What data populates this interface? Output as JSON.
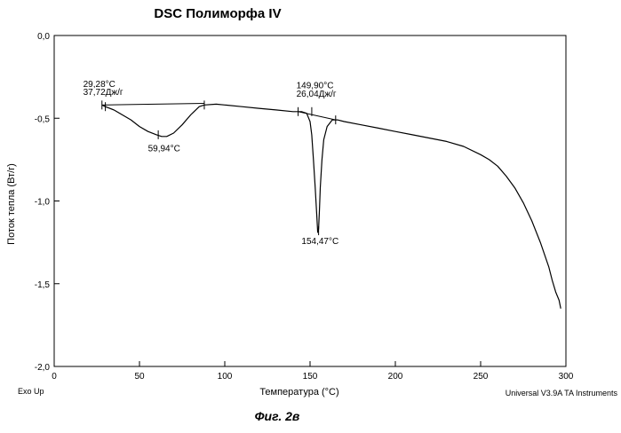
{
  "chart_data": {
    "type": "line",
    "title": "DSC Полиморфа IV",
    "xlabel": "Температура (°C)",
    "ylabel": "Поток тепла (Вт/г)",
    "xlim": [
      0,
      300
    ],
    "ylim": [
      -2.0,
      0.0
    ],
    "x_ticks": [
      "0",
      "50",
      "100",
      "150",
      "200",
      "250",
      "300"
    ],
    "y_ticks": [
      "0,0",
      "-0,5",
      "-1,0",
      "-1,5",
      "-2,0"
    ],
    "series": [
      {
        "x": [
          28,
          30,
          35,
          40,
          45,
          50,
          55,
          60,
          63,
          66,
          70,
          75,
          80,
          85,
          88,
          95,
          100,
          110,
          120,
          130,
          140,
          145,
          148,
          150,
          151,
          152,
          153,
          154,
          154.5,
          155,
          155.5,
          156,
          157,
          158,
          160,
          163,
          166,
          170,
          180,
          190,
          200,
          210,
          220,
          230,
          240,
          250,
          255,
          260,
          265,
          270,
          275,
          280,
          285,
          290,
          292,
          294,
          296,
          297
        ],
        "y": [
          -0.42,
          -0.43,
          -0.45,
          -0.48,
          -0.51,
          -0.55,
          -0.58,
          -0.6,
          -0.61,
          -0.61,
          -0.59,
          -0.54,
          -0.48,
          -0.43,
          -0.42,
          -0.415,
          -0.42,
          -0.43,
          -0.44,
          -0.45,
          -0.46,
          -0.46,
          -0.47,
          -0.52,
          -0.6,
          -0.75,
          -0.92,
          -1.1,
          -1.19,
          -1.17,
          -1.05,
          -0.92,
          -0.75,
          -0.63,
          -0.55,
          -0.51,
          -0.51,
          -0.52,
          -0.54,
          -0.56,
          -0.58,
          -0.6,
          -0.62,
          -0.64,
          -0.67,
          -0.72,
          -0.75,
          -0.79,
          -0.85,
          -0.92,
          -1.01,
          -1.12,
          -1.25,
          -1.4,
          -1.48,
          -1.55,
          -1.6,
          -1.65
        ]
      }
    ],
    "annotations": [
      {
        "text": "29,28°C",
        "x": 17,
        "y": -0.31
      },
      {
        "text": "37,72Дж/г",
        "x": 17,
        "y": -0.36
      },
      {
        "text": "59,94°C",
        "x": 55,
        "y": -0.7
      },
      {
        "text": "149,90°C",
        "x": 142,
        "y": -0.32
      },
      {
        "text": "26,04Дж/г",
        "x": 142,
        "y": -0.37
      },
      {
        "text": "154,47°C",
        "x": 145,
        "y": -1.26
      }
    ],
    "markers": [
      {
        "x": 28,
        "y": -0.42
      },
      {
        "x": 30,
        "y": -0.43
      },
      {
        "x": 61,
        "y": -0.6
      },
      {
        "x": 88,
        "y": -0.42
      },
      {
        "x": 143,
        "y": -0.46
      },
      {
        "x": 151,
        "y": -0.46
      },
      {
        "x": 155,
        "y": -1.18
      },
      {
        "x": 165,
        "y": -0.51
      }
    ],
    "baselines": [
      {
        "x": [
          28,
          88
        ],
        "y": [
          -0.42,
          -0.41
        ]
      },
      {
        "x": [
          143,
          165
        ],
        "y": [
          -0.46,
          -0.51
        ]
      }
    ]
  },
  "corner_left": "Exo Up",
  "corner_right": "Universal V3.9A TA Instruments",
  "figure_caption": "Фиг. 2в"
}
